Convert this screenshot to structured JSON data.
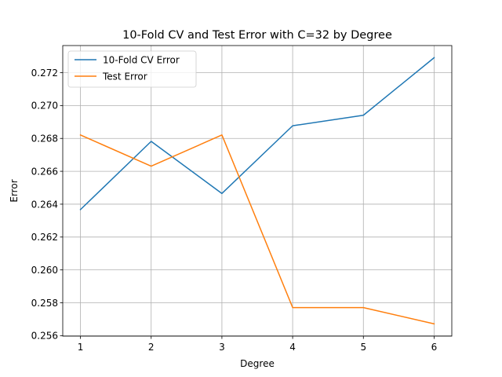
{
  "chart_data": {
    "type": "line",
    "title": "10-Fold CV and Test Error with C=32 by Degree",
    "xlabel": "Degree",
    "ylabel": "Error",
    "x": [
      1,
      2,
      3,
      4,
      5,
      6
    ],
    "x_ticks": [
      "1",
      "2",
      "3",
      "4",
      "5",
      "6"
    ],
    "y_ticks": [
      "0.256",
      "0.258",
      "0.260",
      "0.262",
      "0.264",
      "0.266",
      "0.268",
      "0.270",
      "0.272"
    ],
    "xlim": [
      0.75,
      6.25
    ],
    "ylim": [
      0.25597,
      0.27365
    ],
    "grid": true,
    "legend_position": "top-left",
    "series": [
      {
        "name": "10-Fold CV Error",
        "color": "#1f77b4",
        "values": [
          0.26367,
          0.26782,
          0.26465,
          0.26877,
          0.26941,
          0.27291
        ]
      },
      {
        "name": "Test Error",
        "color": "#ff7f0e",
        "values": [
          0.26821,
          0.26631,
          0.26821,
          0.25771,
          0.25771,
          0.25672
        ]
      }
    ]
  }
}
